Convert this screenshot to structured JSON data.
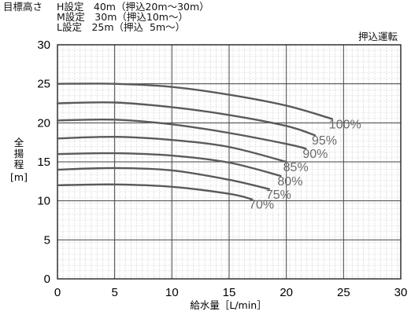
{
  "header": {
    "target_head": "目標高さ",
    "h_row": "H設定　40m（押込20m～30m）",
    "m_row": "M設定　30m（押込10m～）",
    "l_row": "L設定　25m（押込  5m～）",
    "mode": "押込運転"
  },
  "chart_data": {
    "type": "line",
    "xlabel": "給水量［L/min］",
    "ylabel_chars": [
      "全",
      "揚",
      "程"
    ],
    "ylabel_unit": "[m]",
    "xlim": [
      0,
      30
    ],
    "ylim": [
      0,
      30
    ],
    "x_ticks": [
      "0",
      "5",
      "10",
      "15",
      "20",
      "25",
      "30"
    ],
    "y_ticks": [
      "0",
      "5",
      "10",
      "15",
      "20",
      "25",
      "30"
    ],
    "grid": true,
    "series": [
      {
        "name": "100%",
        "x": [
          0,
          5,
          10,
          15,
          20,
          24
        ],
        "y": [
          25.0,
          25.0,
          24.6,
          23.6,
          22.2,
          20.5
        ]
      },
      {
        "name": "95%",
        "x": [
          0,
          5,
          10,
          15,
          20,
          22.5
        ],
        "y": [
          22.5,
          22.6,
          22.0,
          21.0,
          19.6,
          18.4
        ]
      },
      {
        "name": "90%",
        "x": [
          0,
          5,
          10,
          15,
          20,
          21.7
        ],
        "y": [
          20.3,
          20.4,
          19.8,
          18.7,
          17.3,
          16.7
        ]
      },
      {
        "name": "85%",
        "x": [
          0,
          5,
          10,
          15,
          20
        ],
        "y": [
          18.0,
          18.2,
          17.8,
          16.9,
          15.0
        ]
      },
      {
        "name": "80%",
        "x": [
          0,
          5,
          10,
          15,
          19.5
        ],
        "y": [
          16.0,
          16.1,
          15.8,
          14.9,
          13.2
        ]
      },
      {
        "name": "75%",
        "x": [
          0,
          5,
          10,
          15,
          18.5
        ],
        "y": [
          14.0,
          14.2,
          13.9,
          12.7,
          11.5
        ]
      },
      {
        "name": "70%",
        "x": [
          0,
          5,
          10,
          15,
          17
        ],
        "y": [
          12.0,
          12.1,
          11.8,
          10.9,
          10.2
        ]
      }
    ]
  }
}
